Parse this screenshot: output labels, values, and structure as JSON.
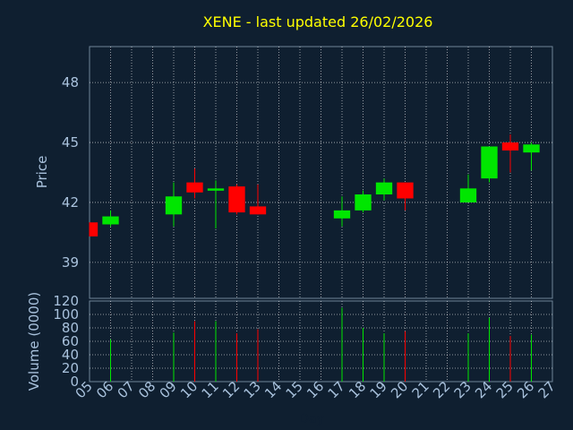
{
  "chart_data": {
    "type": "candlestick",
    "title": "XENE - last updated 26/02/2026",
    "xlabel": "Day",
    "price_panel": {
      "ylabel": "Price",
      "yticks": [
        39,
        42,
        45,
        48
      ],
      "ylim": [
        37.2,
        49.8
      ]
    },
    "volume_panel": {
      "ylabel": "Volume (0000)",
      "yticks": [
        0,
        20,
        40,
        60,
        80,
        100,
        120
      ],
      "ylim": [
        0,
        120
      ]
    },
    "x_ticks": [
      "05",
      "06",
      "07",
      "08",
      "09",
      "10",
      "11",
      "12",
      "13",
      "14",
      "15",
      "16",
      "17",
      "18",
      "19",
      "20",
      "21",
      "22",
      "23",
      "24",
      "25",
      "26",
      "27"
    ],
    "grid": true,
    "colors": {
      "up": "#00e600",
      "down": "#ff0000",
      "grid": "#ffffff",
      "background": "#0f1f30",
      "title": "#ffff00",
      "text": "#a9c2dd"
    },
    "candles": [
      {
        "day": "05",
        "open": 41.0,
        "high": 41.0,
        "low": 40.3,
        "close": 40.3,
        "volume": 0
      },
      {
        "day": "06",
        "open": 40.9,
        "high": 41.6,
        "low": 40.8,
        "close": 41.3,
        "volume": 63
      },
      {
        "day": "09",
        "open": 41.4,
        "high": 43.0,
        "low": 40.8,
        "close": 42.3,
        "volume": 73
      },
      {
        "day": "10",
        "open": 43.0,
        "high": 43.7,
        "low": 42.2,
        "close": 42.5,
        "volume": 90
      },
      {
        "day": "11",
        "open": 42.6,
        "high": 43.1,
        "low": 40.7,
        "close": 42.7,
        "volume": 90
      },
      {
        "day": "12",
        "open": 42.8,
        "high": 42.9,
        "low": 41.4,
        "close": 41.5,
        "volume": 72
      },
      {
        "day": "13",
        "open": 41.8,
        "high": 42.9,
        "low": 41.4,
        "close": 41.4,
        "volume": 78
      },
      {
        "day": "17",
        "open": 41.2,
        "high": 42.3,
        "low": 40.8,
        "close": 41.6,
        "volume": 110
      },
      {
        "day": "18",
        "open": 41.6,
        "high": 42.6,
        "low": 41.5,
        "close": 42.4,
        "volume": 80
      },
      {
        "day": "19",
        "open": 42.4,
        "high": 43.2,
        "low": 42.1,
        "close": 43.0,
        "volume": 72
      },
      {
        "day": "20",
        "open": 43.0,
        "high": 43.0,
        "low": 41.6,
        "close": 42.2,
        "volume": 75
      },
      {
        "day": "23",
        "open": 42.0,
        "high": 43.4,
        "low": 42.0,
        "close": 42.7,
        "volume": 72
      },
      {
        "day": "24",
        "open": 43.2,
        "high": 44.8,
        "low": 43.0,
        "close": 44.8,
        "volume": 95
      },
      {
        "day": "25",
        "open": 45.0,
        "high": 45.4,
        "low": 43.5,
        "close": 44.6,
        "volume": 68
      },
      {
        "day": "26",
        "open": 44.5,
        "high": 45.0,
        "low": 43.6,
        "close": 44.9,
        "volume": 70
      }
    ]
  }
}
